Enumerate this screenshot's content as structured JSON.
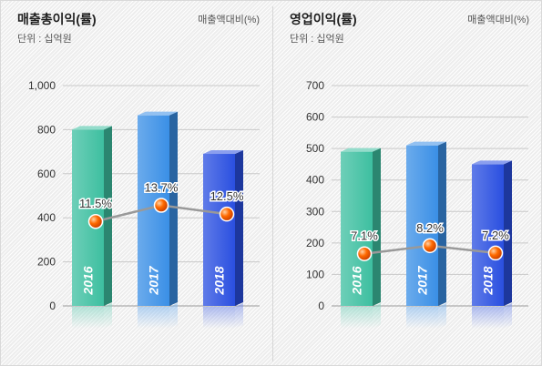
{
  "panels": [
    {
      "title": "매출총이익(률)",
      "unit": "단위 : 십억원",
      "ratio_label": "매출액대비(%)"
    },
    {
      "title": "영업이익(률)",
      "unit": "단위 : 십억원",
      "ratio_label": "매출액대비(%)"
    }
  ],
  "chart_data": [
    {
      "type": "bar",
      "title": "매출총이익(률)",
      "subtitle": "단위 : 십억원",
      "secondary_label": "매출액대비(%)",
      "categories": [
        "2016",
        "2017",
        "2018"
      ],
      "values": [
        800,
        865,
        690
      ],
      "ylim": [
        0,
        1000
      ],
      "yticks": [
        0,
        200,
        400,
        600,
        800,
        1000
      ],
      "ytick_labels": [
        "0",
        "200",
        "400",
        "600",
        "800",
        "1,000"
      ],
      "grid": true,
      "colors": [
        "#3dbfa0",
        "#3a8fe6",
        "#2a4fe0"
      ],
      "line": {
        "type": "line",
        "values": [
          11.5,
          13.7,
          12.5
        ],
        "labels": [
          "11.5%",
          "13.7%",
          "12.5%"
        ],
        "marker_color": "#ff6a00",
        "line_color": "#999999"
      }
    },
    {
      "type": "bar",
      "title": "영업이익(률)",
      "subtitle": "단위 : 십억원",
      "secondary_label": "매출액대비(%)",
      "categories": [
        "2016",
        "2017",
        "2018"
      ],
      "values": [
        490,
        510,
        450
      ],
      "ylim": [
        0,
        700
      ],
      "yticks": [
        0,
        100,
        200,
        300,
        400,
        500,
        600,
        700
      ],
      "ytick_labels": [
        "0",
        "100",
        "200",
        "300",
        "400",
        "500",
        "600",
        "700"
      ],
      "grid": true,
      "colors": [
        "#3dbfa0",
        "#3a8fe6",
        "#2a4fe0"
      ],
      "line": {
        "type": "line",
        "values": [
          7.1,
          8.2,
          7.2
        ],
        "labels": [
          "7.1%",
          "8.2%",
          "7.2%"
        ],
        "marker_color": "#ff6a00",
        "line_color": "#999999"
      }
    }
  ]
}
